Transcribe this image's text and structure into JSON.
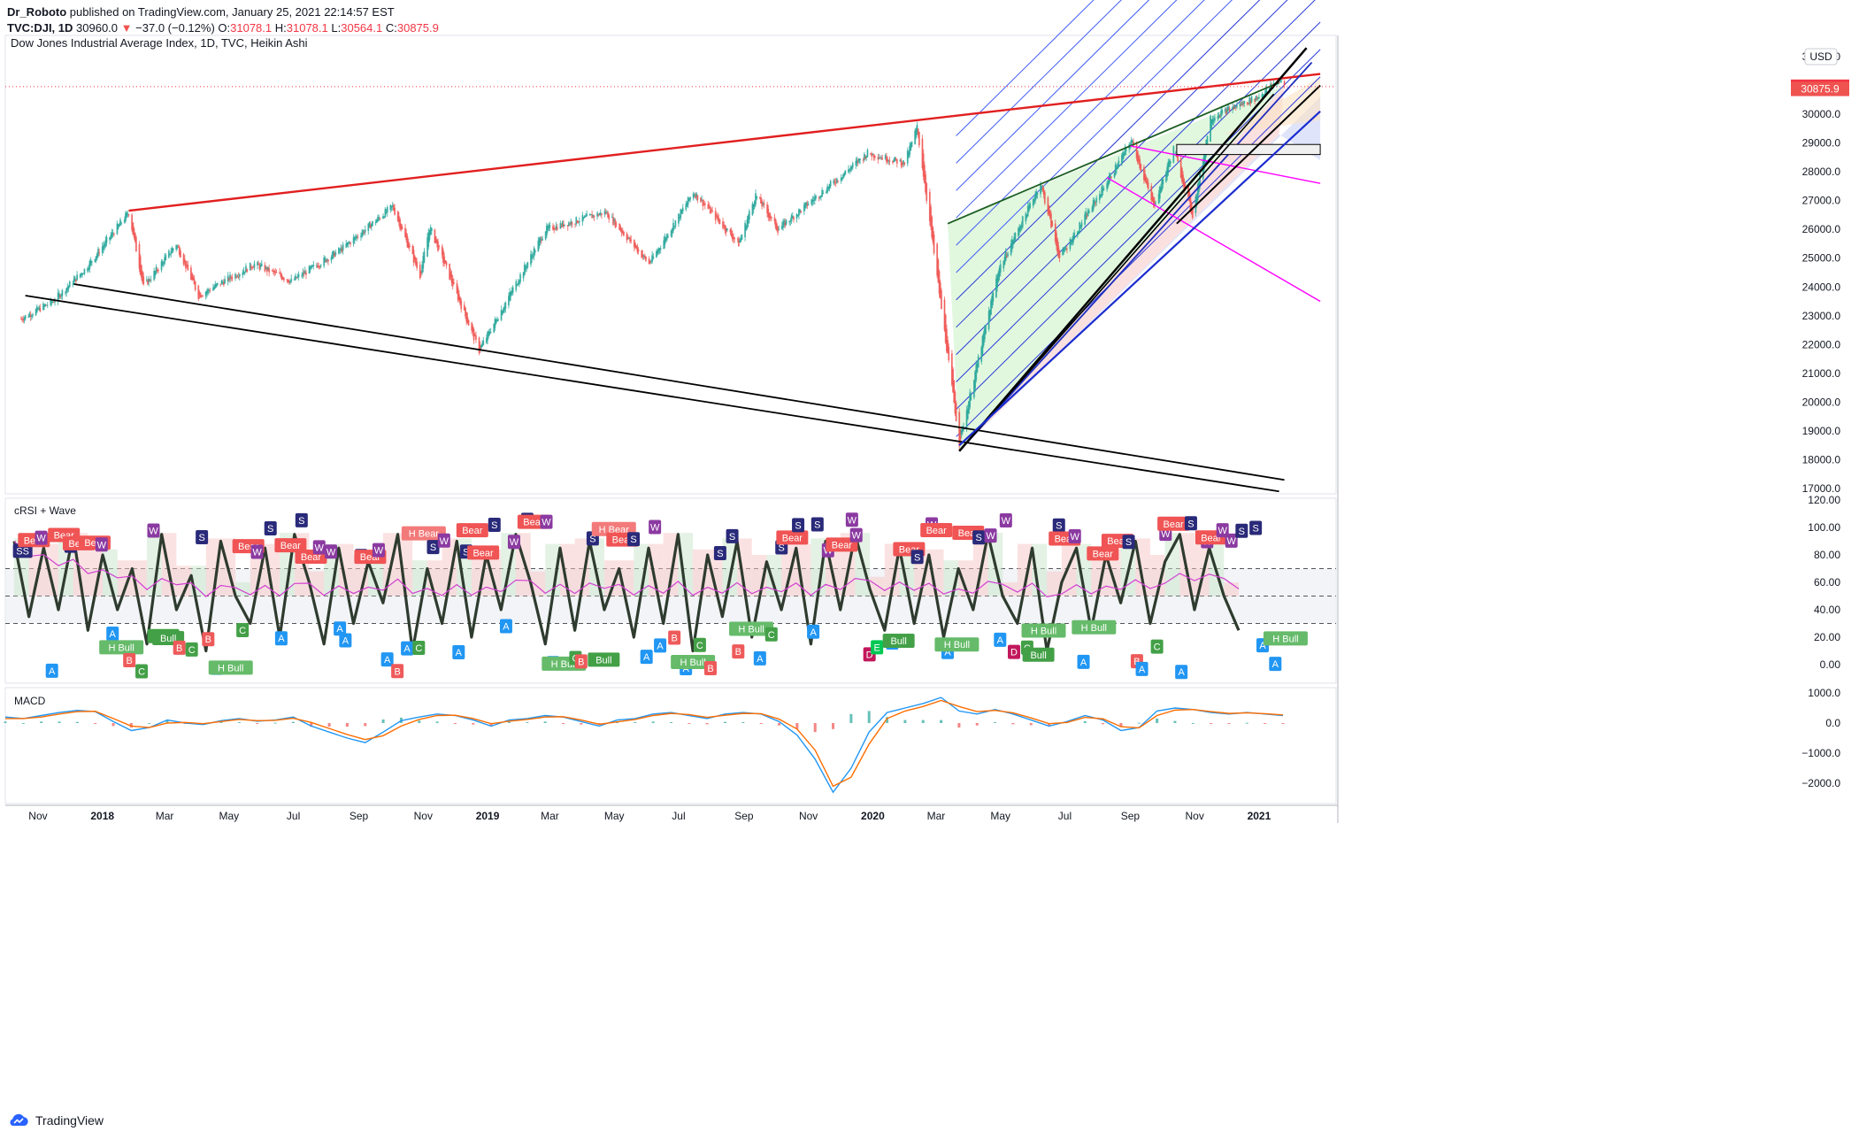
{
  "header": {
    "author": "Dr_Roboto",
    "published_text": "published on TradingView.com, January 25, 2021 22:14:57 EST",
    "symbol_line": "TVC:DJI, 1D",
    "last_value": "30960.0",
    "change": "−37.0 (−0.12%)",
    "o_label": "O:",
    "o_value": "31078.1",
    "h_label": "H:",
    "h_value": "31078.1",
    "l_label": "L:",
    "l_value": "30564.1",
    "c_label": "C:",
    "c_value": "30875.9"
  },
  "footer": {
    "brand": "TradingView"
  },
  "chart_data": [
    {
      "type": "candlestick",
      "panel": "price",
      "title": "Dow Jones Industrial Average Index, 1D, TVC, Heikin Ashi",
      "currency": "USD",
      "y_ticks": [
        17000,
        18000,
        19000,
        20000,
        21000,
        22000,
        23000,
        24000,
        25000,
        26000,
        27000,
        28000,
        29000,
        30000,
        31000,
        32000
      ],
      "ylim": [
        17000,
        32200
      ],
      "price_labels": [
        {
          "value": "30960.0",
          "color": "#f23645"
        },
        {
          "value": "30875.9",
          "color": "#ef5350"
        }
      ],
      "x_ticks": [
        "Nov",
        "2018",
        "Mar",
        "May",
        "Jul",
        "Sep",
        "Nov",
        "2019",
        "Mar",
        "May",
        "Jul",
        "Sep",
        "Nov",
        "2020",
        "Mar",
        "May",
        "Jul",
        "Sep",
        "Nov",
        "2021"
      ],
      "close_path": [
        [
          "2017-10-16",
          22900
        ],
        [
          "2017-11-15",
          23500
        ],
        [
          "2017-12-15",
          24600
        ],
        [
          "2018-01-26",
          26600
        ],
        [
          "2018-02-09",
          24000
        ],
        [
          "2018-03-12",
          25500
        ],
        [
          "2018-04-02",
          23700
        ],
        [
          "2018-05-25",
          24800
        ],
        [
          "2018-06-29",
          24200
        ],
        [
          "2018-08-15",
          25300
        ],
        [
          "2018-10-03",
          26800
        ],
        [
          "2018-10-29",
          24400
        ],
        [
          "2018-11-07",
          26100
        ],
        [
          "2018-12-24",
          21800
        ],
        [
          "2019-02-25",
          26000
        ],
        [
          "2019-04-23",
          26600
        ],
        [
          "2019-06-03",
          24800
        ],
        [
          "2019-07-15",
          27300
        ],
        [
          "2019-08-27",
          25500
        ],
        [
          "2019-09-12",
          27200
        ],
        [
          "2019-10-03",
          26000
        ],
        [
          "2019-12-27",
          28650
        ],
        [
          "2020-01-31",
          28300
        ],
        [
          "2020-02-12",
          29550
        ],
        [
          "2020-03-23",
          18600
        ],
        [
          "2020-04-29",
          24600
        ],
        [
          "2020-06-08",
          27600
        ],
        [
          "2020-06-26",
          25000
        ],
        [
          "2020-08-14",
          27900
        ],
        [
          "2020-09-02",
          29100
        ],
        [
          "2020-09-23",
          26800
        ],
        [
          "2020-10-12",
          28800
        ],
        [
          "2020-10-30",
          26500
        ],
        [
          "2020-11-16",
          29900
        ],
        [
          "2020-12-31",
          30600
        ],
        [
          "2021-01-20",
          31200
        ],
        [
          "2021-01-25",
          30960
        ]
      ],
      "annotations": [
        {
          "name": "upper-red-trendline",
          "color": "#e21f1f",
          "points": [
            [
              "2018-01-26",
              26650
            ],
            [
              "2021-02-28",
              31400
            ]
          ]
        },
        {
          "name": "lower-black-line-1",
          "color": "#000000",
          "points": [
            [
              "2017-10-20",
              23700
            ],
            [
              "2021-01-20",
              16900
            ]
          ]
        },
        {
          "name": "lower-black-line-2",
          "color": "#000000",
          "points": [
            [
              "2017-12-05",
              24100
            ],
            [
              "2021-01-25",
              17300
            ]
          ]
        },
        {
          "name": "green-channel-top",
          "color": "#1b5e20",
          "points": [
            [
              "2020-03-12",
              26200
            ],
            [
              "2021-01-20",
              31100
            ]
          ]
        },
        {
          "name": "blue-rising-line",
          "color": "#1f2fbf",
          "points": [
            [
              "2020-03-23",
              18300
            ],
            [
              "2021-02-20",
              31800
            ]
          ]
        },
        {
          "name": "pink-fan-line-1",
          "color": "#ff00ff",
          "points": [
            [
              "2020-09-01",
              28900
            ],
            [
              "2021-02-28",
              27600
            ]
          ]
        },
        {
          "name": "pink-fan-line-2",
          "color": "#ff00ff",
          "points": [
            [
              "2020-08-10",
              27800
            ],
            [
              "2021-02-28",
              23500
            ]
          ]
        },
        {
          "name": "resistance-box",
          "color": "#000000",
          "range": [
            28600,
            28950
          ],
          "from": "2020-10-15",
          "to": "2021-02-28"
        }
      ]
    },
    {
      "type": "line",
      "panel": "oscillator",
      "title": "cRSI + Wave",
      "y_ticks": [
        0,
        20,
        40,
        60,
        80,
        100,
        120
      ],
      "ylim": [
        -10,
        120
      ],
      "levels": [
        30,
        50,
        70
      ],
      "series": [
        {
          "values": [
            90,
            35,
            85,
            40,
            95,
            25,
            80,
            40,
            70,
            15,
            95,
            40,
            65,
            10,
            90,
            50,
            30,
            85,
            20,
            95,
            60,
            15,
            85,
            30,
            75,
            45,
            95,
            10,
            70,
            30,
            90,
            20,
            80,
            40,
            95,
            60,
            15,
            85,
            25,
            90,
            40,
            70,
            20,
            85,
            30,
            95,
            10,
            80,
            35,
            90,
            20,
            75,
            40,
            85,
            15,
            90,
            40,
            95,
            55,
            25,
            85,
            30,
            80,
            20,
            70,
            40,
            95,
            50,
            30,
            85,
            10,
            60,
            85,
            25,
            80,
            45,
            90,
            30,
            75,
            95,
            40,
            85,
            50,
            25
          ]
        }
      ],
      "markers": [
        {
          "label": "SS",
          "kind": "s"
        },
        {
          "label": "Bear",
          "kind": "bear"
        },
        {
          "label": "W",
          "kind": "w"
        },
        {
          "label": "A",
          "kind": "a"
        },
        {
          "label": "Bear",
          "kind": "bear"
        },
        {
          "label": "S",
          "kind": "s"
        },
        {
          "label": "Bear",
          "kind": "bear"
        },
        {
          "label": "Bear",
          "kind": "bear"
        },
        {
          "label": "W",
          "kind": "w"
        },
        {
          "label": "A",
          "kind": "a"
        },
        {
          "label": "H Bull",
          "kind": "hbull"
        },
        {
          "label": "B",
          "kind": "b"
        },
        {
          "label": "C",
          "kind": "c"
        },
        {
          "label": "W",
          "kind": "w"
        },
        {
          "label": "Bull",
          "kind": "bull"
        },
        {
          "label": "Bull",
          "kind": "bull"
        },
        {
          "label": "B",
          "kind": "b"
        },
        {
          "label": "C",
          "kind": "c"
        },
        {
          "label": "S",
          "kind": "s"
        },
        {
          "label": "B",
          "kind": "b"
        },
        {
          "label": "A",
          "kind": "a"
        },
        {
          "label": "H Bull",
          "kind": "hbull"
        },
        {
          "label": "C",
          "kind": "c"
        },
        {
          "label": "Bear",
          "kind": "bear"
        },
        {
          "label": "W",
          "kind": "w"
        },
        {
          "label": "S",
          "kind": "s"
        },
        {
          "label": "A",
          "kind": "a"
        },
        {
          "label": "Bear",
          "kind": "bear"
        },
        {
          "label": "S",
          "kind": "s"
        },
        {
          "label": "Bear",
          "kind": "bear"
        },
        {
          "label": "W",
          "kind": "w"
        },
        {
          "label": "W",
          "kind": "w"
        },
        {
          "label": "A",
          "kind": "a"
        },
        {
          "label": "A",
          "kind": "a"
        },
        {
          "label": "S",
          "kind": "s"
        },
        {
          "label": "Bear",
          "kind": "bear"
        },
        {
          "label": "W",
          "kind": "w"
        },
        {
          "label": "A",
          "kind": "a"
        },
        {
          "label": "B",
          "kind": "b"
        },
        {
          "label": "A",
          "kind": "a"
        },
        {
          "label": "C",
          "kind": "c"
        },
        {
          "label": "H Bear",
          "kind": "hbear"
        },
        {
          "label": "S",
          "kind": "s"
        },
        {
          "label": "W",
          "kind": "w"
        },
        {
          "label": "A",
          "kind": "a"
        },
        {
          "label": "S",
          "kind": "s"
        },
        {
          "label": "Bear",
          "kind": "bear"
        },
        {
          "label": "Bear",
          "kind": "bear"
        },
        {
          "label": "S",
          "kind": "s"
        },
        {
          "label": "A",
          "kind": "a"
        },
        {
          "label": "W",
          "kind": "w"
        },
        {
          "label": "S",
          "kind": "s"
        },
        {
          "label": "Bear",
          "kind": "bear"
        },
        {
          "label": "W",
          "kind": "w"
        },
        {
          "label": "A",
          "kind": "a"
        },
        {
          "label": "H Bull",
          "kind": "hbull"
        },
        {
          "label": "C",
          "kind": "c"
        },
        {
          "label": "B",
          "kind": "b"
        },
        {
          "label": "S",
          "kind": "s"
        },
        {
          "label": "Bull",
          "kind": "bull"
        },
        {
          "label": "H Bear",
          "kind": "hbear"
        },
        {
          "label": "Bear",
          "kind": "bear"
        },
        {
          "label": "S",
          "kind": "s"
        },
        {
          "label": "A",
          "kind": "a"
        },
        {
          "label": "W",
          "kind": "w"
        },
        {
          "label": "A",
          "kind": "a"
        },
        {
          "label": "B",
          "kind": "b"
        },
        {
          "label": "A",
          "kind": "a"
        },
        {
          "label": "H Bull",
          "kind": "hbull"
        },
        {
          "label": "C",
          "kind": "c"
        },
        {
          "label": "B",
          "kind": "b"
        },
        {
          "label": "S",
          "kind": "s"
        },
        {
          "label": "S",
          "kind": "s"
        },
        {
          "label": "B",
          "kind": "b"
        },
        {
          "label": "H Bull",
          "kind": "hbull"
        },
        {
          "label": "A",
          "kind": "a"
        },
        {
          "label": "C",
          "kind": "c"
        },
        {
          "label": "S",
          "kind": "s"
        },
        {
          "label": "Bear",
          "kind": "bear"
        },
        {
          "label": "S",
          "kind": "s"
        },
        {
          "label": "A",
          "kind": "a"
        },
        {
          "label": "S",
          "kind": "s"
        },
        {
          "label": "W",
          "kind": "w"
        },
        {
          "label": "Bear",
          "kind": "bear"
        },
        {
          "label": "W",
          "kind": "w"
        },
        {
          "label": "W",
          "kind": "w"
        },
        {
          "label": "D",
          "kind": "d"
        },
        {
          "label": "E",
          "kind": "e"
        },
        {
          "label": "A",
          "kind": "a"
        },
        {
          "label": "Bull",
          "kind": "bull"
        },
        {
          "label": "Bear",
          "kind": "bear"
        },
        {
          "label": "S",
          "kind": "s"
        },
        {
          "label": "W",
          "kind": "w"
        },
        {
          "label": "Bear",
          "kind": "bear"
        },
        {
          "label": "A",
          "kind": "a"
        },
        {
          "label": "H Bull",
          "kind": "hbull"
        },
        {
          "label": "Bear",
          "kind": "bear"
        },
        {
          "label": "S",
          "kind": "s"
        },
        {
          "label": "W",
          "kind": "w"
        },
        {
          "label": "A",
          "kind": "a"
        },
        {
          "label": "W",
          "kind": "w"
        },
        {
          "label": "D",
          "kind": "d"
        },
        {
          "label": "C",
          "kind": "c"
        },
        {
          "label": "Bull",
          "kind": "bull"
        },
        {
          "label": "H Bull",
          "kind": "hbull"
        },
        {
          "label": "S",
          "kind": "s"
        },
        {
          "label": "Bear",
          "kind": "bear"
        },
        {
          "label": "W",
          "kind": "w"
        },
        {
          "label": "A",
          "kind": "a"
        },
        {
          "label": "H Bull",
          "kind": "hbull"
        },
        {
          "label": "Bear",
          "kind": "bear"
        },
        {
          "label": "Bear",
          "kind": "bear"
        },
        {
          "label": "S",
          "kind": "s"
        },
        {
          "label": "B",
          "kind": "b"
        },
        {
          "label": "A",
          "kind": "a"
        },
        {
          "label": "C",
          "kind": "c"
        },
        {
          "label": "W",
          "kind": "w"
        },
        {
          "label": "Bear",
          "kind": "bear"
        },
        {
          "label": "A",
          "kind": "a"
        },
        {
          "label": "S",
          "kind": "s"
        },
        {
          "label": "W",
          "kind": "w"
        },
        {
          "label": "Bear",
          "kind": "bear"
        },
        {
          "label": "W",
          "kind": "w"
        },
        {
          "label": "W",
          "kind": "w"
        },
        {
          "label": "S",
          "kind": "s"
        },
        {
          "label": "S",
          "kind": "s"
        },
        {
          "label": "A",
          "kind": "a"
        },
        {
          "label": "A",
          "kind": "a"
        },
        {
          "label": "H Bull",
          "kind": "hbull"
        }
      ]
    },
    {
      "type": "line",
      "panel": "macd",
      "title": "MACD",
      "y_ticks": [
        -2000,
        -1000,
        0,
        1000
      ],
      "ylim": [
        -2600,
        1100
      ],
      "series": [
        {
          "values": [
            200,
            150,
            250,
            350,
            420,
            380,
            50,
            -250,
            -150,
            100,
            0,
            -50,
            80,
            150,
            60,
            100,
            200,
            -100,
            -300,
            -500,
            -650,
            -300,
            80,
            200,
            300,
            250,
            100,
            -100,
            100,
            150,
            250,
            200,
            50,
            -100,
            100,
            150,
            300,
            350,
            250,
            150,
            300,
            350,
            300,
            50,
            -400,
            -1200,
            -2300,
            -1500,
            -300,
            350,
            500,
            650,
            850,
            400,
            300,
            450,
            300,
            100,
            -100,
            50,
            250,
            100,
            -250,
            -150,
            400,
            500,
            450,
            350,
            300,
            350,
            300,
            250
          ]
        },
        {
          "values": [
            150,
            150,
            200,
            300,
            380,
            390,
            150,
            -100,
            -150,
            0,
            20,
            -20,
            50,
            120,
            80,
            90,
            160,
            20,
            -180,
            -380,
            -550,
            -420,
            -100,
            120,
            250,
            260,
            150,
            -20,
            60,
            120,
            200,
            210,
            100,
            -40,
            40,
            120,
            250,
            320,
            280,
            190,
            260,
            320,
            310,
            130,
            -200,
            -900,
            -2100,
            -1800,
            -700,
            150,
            400,
            550,
            750,
            550,
            380,
            420,
            340,
            170,
            -20,
            20,
            190,
            140,
            -120,
            -160,
            250,
            430,
            450,
            380,
            320,
            340,
            310,
            270
          ]
        }
      ]
    }
  ]
}
